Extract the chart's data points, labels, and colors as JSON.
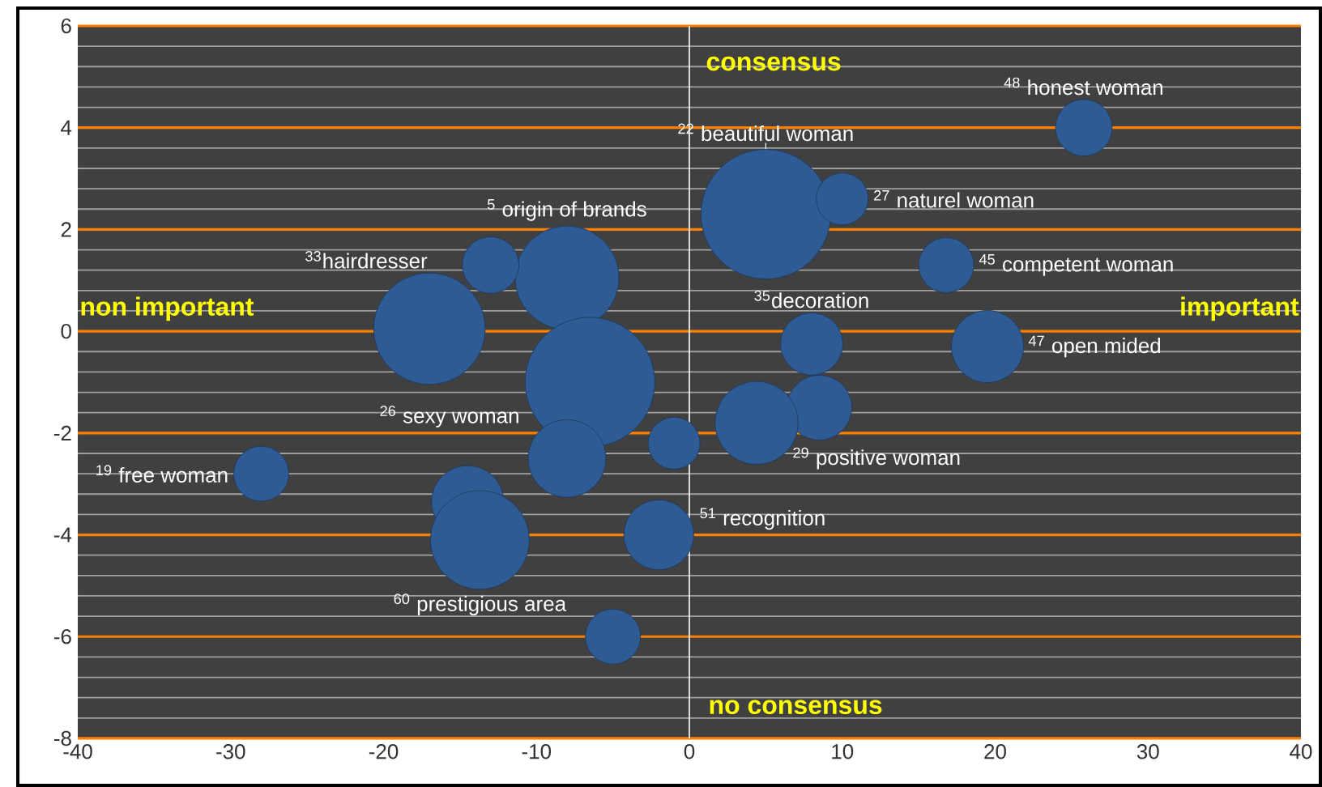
{
  "chart_data": {
    "type": "bubble",
    "color": "#2f5b94",
    "marker": "circle",
    "grid": "y",
    "xlim": [
      -40,
      40
    ],
    "xticks": [
      -40,
      -30,
      -20,
      -10,
      0,
      10,
      20,
      30,
      40
    ],
    "ylim": [
      -8,
      6
    ],
    "yticks": [
      -8,
      -6,
      -4,
      -2,
      0,
      2,
      4,
      6
    ],
    "x": [
      25.8,
      5.0,
      10.0,
      -8.0,
      -13.0,
      -17.0,
      16.8,
      8.0,
      19.5,
      -6.5,
      -8.0,
      8.5,
      4.4,
      -1.0,
      -28.0,
      -14.5,
      -13.7,
      -2.0,
      -5.0
    ],
    "values": [
      4.0,
      2.3,
      2.6,
      1.05,
      1.3,
      0.05,
      1.3,
      -0.25,
      -0.3,
      -1.0,
      -2.5,
      -1.5,
      -1.8,
      -2.2,
      -2.8,
      -3.35,
      -4.1,
      -4.0,
      -6.0
    ],
    "sizes": [
      0.19,
      1.0,
      0.16,
      0.64,
      0.19,
      0.74,
      0.18,
      0.23,
      0.31,
      1.0,
      0.36,
      0.25,
      0.41,
      0.16,
      0.18,
      0.31,
      0.58,
      0.29,
      0.18
    ],
    "ref_lines": [
      {
        "axis": "x",
        "value": 0,
        "color": "#ffffff"
      }
    ],
    "annotations": [
      {
        "text": "$^{48}$ honest woman",
        "x": 25.8,
        "y": 4.0
      },
      {
        "text": "$^{22}$ beautiful woman",
        "x": 5.0,
        "y": 2.3
      },
      {
        "text": "$^{27}$ naturel woman",
        "x": 10.0,
        "y": 2.6
      },
      {
        "text": "$^{5}$ origin of brands",
        "x": -8.0,
        "y": 1.05
      },
      {
        "text": "$^{33}$hairdresser",
        "x": -17.0,
        "y": 0.05
      },
      {
        "text": "$^{45}$ competent woman",
        "x": 16.8,
        "y": 1.3
      },
      {
        "text": "$^{35}$decoration",
        "x": 8.0,
        "y": -0.25
      },
      {
        "text": "$^{47}$ open mided",
        "x": 19.5,
        "y": -0.3
      },
      {
        "text": "$^{26}$ sexy woman",
        "x": -8.0,
        "y": -2.5
      },
      {
        "text": "$^{29}$ positive woman",
        "x": 4.4,
        "y": -1.8
      },
      {
        "text": "$^{19}$ free woman",
        "x": -28.0,
        "y": -2.8
      },
      {
        "text": "$^{60}$ prestigious area",
        "x": -13.7,
        "y": -4.1
      },
      {
        "text": "$^{51}$ recognition",
        "x": -2.0,
        "y": -4.0
      },
      "consensus",
      "non important",
      "important",
      "no consensus"
    ]
  }
}
